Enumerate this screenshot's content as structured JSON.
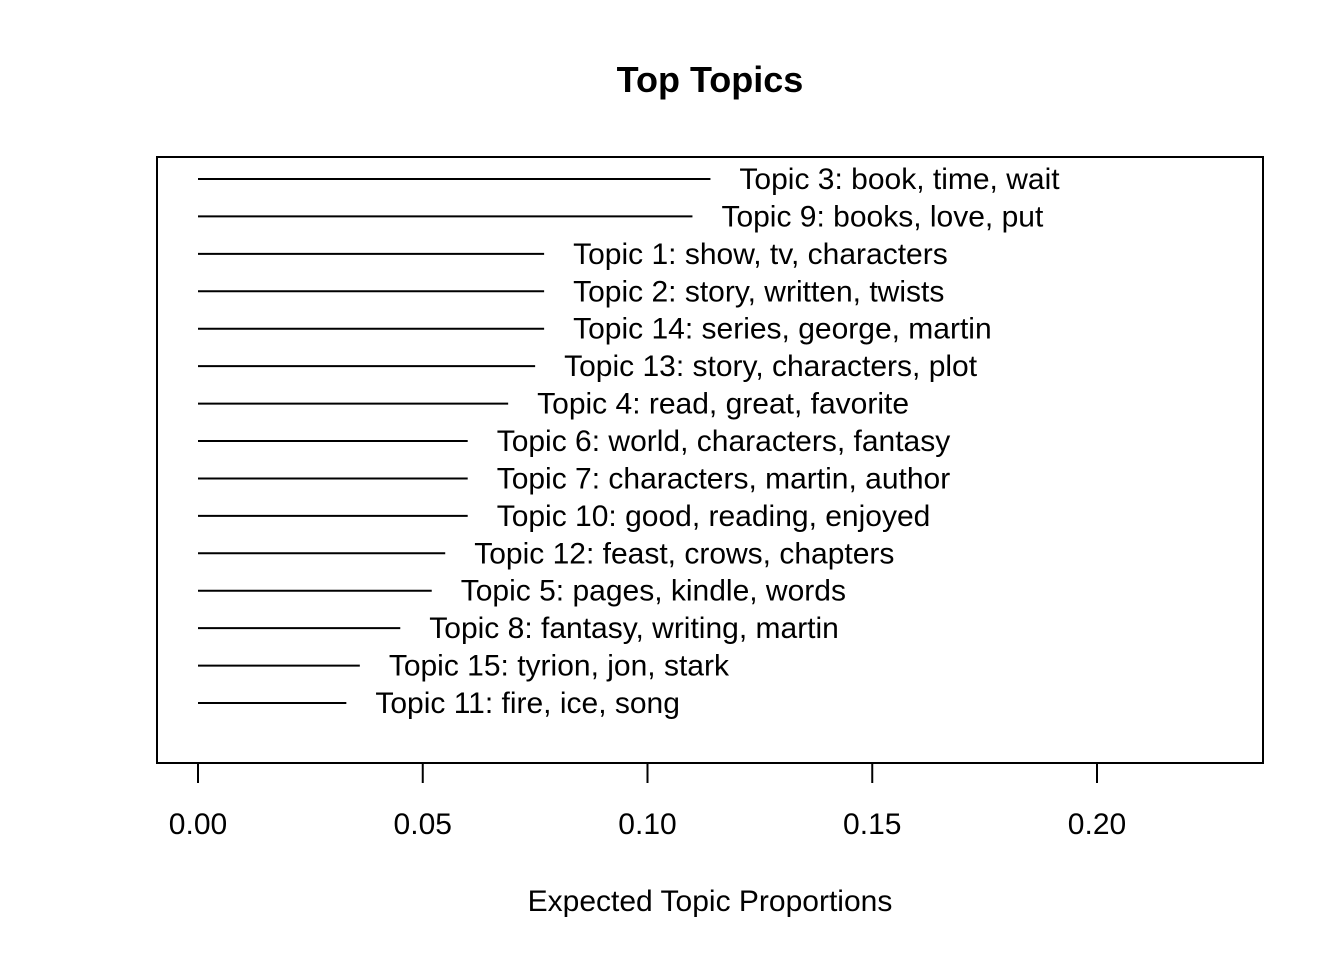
{
  "chart_data": {
    "type": "bar",
    "orientation": "horizontal",
    "title": "Top Topics",
    "xlabel": "Expected Topic Proportions",
    "ylabel": "",
    "xlim": [
      0,
      0.2
    ],
    "xticks": [
      "0.00",
      "0.05",
      "0.10",
      "0.15",
      "0.20"
    ],
    "xtick_values": [
      0,
      0.05,
      0.1,
      0.15,
      0.2
    ],
    "grid": false,
    "legend": "none",
    "bars": [
      {
        "label": "Topic 3: book, time, wait",
        "value": 0.114
      },
      {
        "label": "Topic 9: books, love, put",
        "value": 0.11
      },
      {
        "label": "Topic 1: show, tv, characters",
        "value": 0.077
      },
      {
        "label": "Topic 2: story, written, twists",
        "value": 0.077
      },
      {
        "label": "Topic 14: series, george, martin",
        "value": 0.077
      },
      {
        "label": "Topic 13: story, characters, plot",
        "value": 0.075
      },
      {
        "label": "Topic 4: read, great, favorite",
        "value": 0.069
      },
      {
        "label": "Topic 6: world, characters, fantasy",
        "value": 0.06
      },
      {
        "label": "Topic 7: characters, martin, author",
        "value": 0.06
      },
      {
        "label": "Topic 10: good, reading, enjoyed",
        "value": 0.06
      },
      {
        "label": "Topic 12: feast, crows, chapters",
        "value": 0.055
      },
      {
        "label": "Topic 5: pages, kindle, words",
        "value": 0.052
      },
      {
        "label": "Topic 8: fantasy, writing, martin",
        "value": 0.045
      },
      {
        "label": "Topic 15: tyrion, jon, stark",
        "value": 0.036
      },
      {
        "label": "Topic 11: fire, ice, song",
        "value": 0.033
      }
    ]
  }
}
